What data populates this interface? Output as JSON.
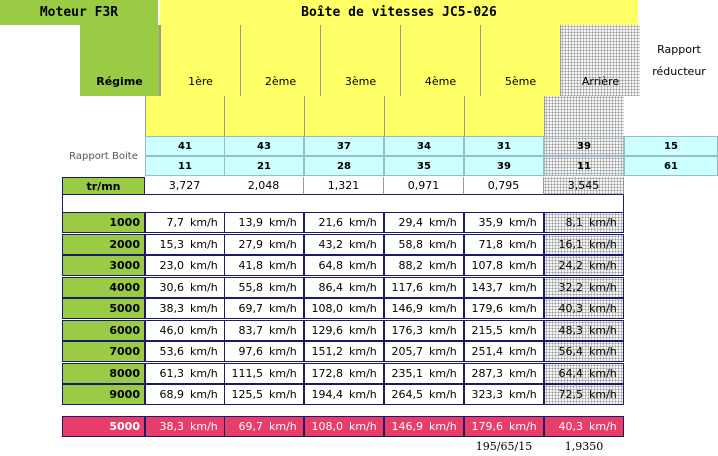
{
  "header": {
    "engine": "Moteur F3R",
    "gearbox": "Boîte de vitesses JC5-026"
  },
  "columns": {
    "regime": "Régime",
    "gears": [
      "1ère",
      "2ème",
      "3ème",
      "4ème",
      "5ème",
      "Arrière"
    ],
    "reducer": "Rapport réducteur"
  },
  "ratios": {
    "label": "Rapport Boite",
    "row1": [
      41,
      43,
      37,
      34,
      31,
      39,
      15
    ],
    "row2": [
      11,
      21,
      28,
      35,
      39,
      11,
      61
    ]
  },
  "rpm_factor": {
    "label": "tr/mn",
    "values": [
      "3,727",
      "2,048",
      "1,321",
      "0,971",
      "0,795",
      "3,545"
    ]
  },
  "speed_table": {
    "unit": "km/h",
    "rows": [
      {
        "regime": "1000",
        "cells": [
          "7,7",
          "13,9",
          "21,6",
          "29,4",
          "35,9",
          "8,1"
        ]
      },
      {
        "regime": "2000",
        "cells": [
          "15,3",
          "27,9",
          "43,2",
          "58,8",
          "71,8",
          "16,1"
        ]
      },
      {
        "regime": "3000",
        "cells": [
          "23,0",
          "41,8",
          "64,8",
          "88,2",
          "107,8",
          "24,2"
        ]
      },
      {
        "regime": "4000",
        "cells": [
          "30,6",
          "55,8",
          "86,4",
          "117,6",
          "143,7",
          "32,2"
        ]
      },
      {
        "regime": "5000",
        "cells": [
          "38,3",
          "69,7",
          "108,0",
          "146,9",
          "179,6",
          "40,3"
        ]
      },
      {
        "regime": "6000",
        "cells": [
          "46,0",
          "83,7",
          "129,6",
          "176,3",
          "215,5",
          "48,3"
        ]
      },
      {
        "regime": "7000",
        "cells": [
          "53,6",
          "97,6",
          "151,2",
          "205,7",
          "251,4",
          "56,4"
        ]
      },
      {
        "regime": "8000",
        "cells": [
          "61,3",
          "111,5",
          "172,8",
          "235,1",
          "287,3",
          "64,4"
        ]
      },
      {
        "regime": "9000",
        "cells": [
          "68,9",
          "125,5",
          "194,4",
          "264,5",
          "323,3",
          "72,5"
        ]
      }
    ],
    "highlight": {
      "regime": "5000",
      "cells": [
        "38,3",
        "69,7",
        "108,0",
        "146,9",
        "179,6",
        "40,3"
      ]
    }
  },
  "footer": {
    "tyre": "195/65/15",
    "ratio": "1,9350"
  }
}
